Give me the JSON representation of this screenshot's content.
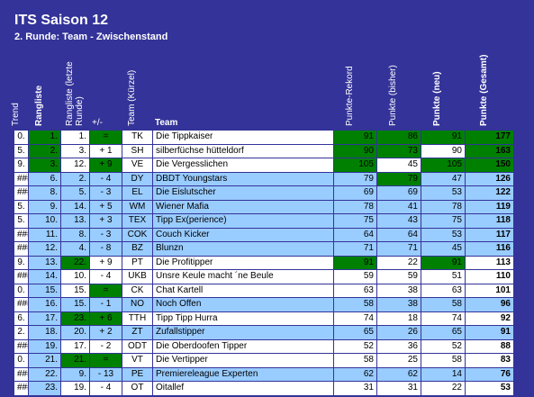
{
  "header": {
    "title": "ITS Saison 12",
    "subtitle": "2. Runde: Team - Zwischenstand"
  },
  "table": {
    "columns": [
      "Trend",
      "Rangliste",
      "Rangliste (letzte Runde)",
      "+/-",
      "Team (Kürzel)",
      "Team",
      "Punkte-Rekord",
      "Punkte (bisher)",
      "Punkte (neu)",
      "Punkte (Gesamt)"
    ],
    "rows": [
      [
        "0.",
        "1.",
        "1.",
        "=",
        "TK",
        "Die Tippkaiser",
        91,
        86,
        91,
        177
      ],
      [
        "5.",
        "2.",
        "3.",
        "+ 1",
        "SH",
        "silberfüchse hütteldorf",
        90,
        73,
        90,
        163
      ],
      [
        "9.",
        "3.",
        "12.",
        "+ 9",
        "VE",
        "Die Vergesslichen",
        105,
        45,
        105,
        150
      ],
      [
        "###",
        "6.",
        "2.",
        "- 4",
        "DY",
        "DBDT Youngstars",
        79,
        79,
        47,
        126
      ],
      [
        "###",
        "8.",
        "5.",
        "- 3",
        "EL",
        "Die Eislutscher",
        69,
        69,
        53,
        122
      ],
      [
        "5.",
        "9.",
        "14.",
        "+ 5",
        "WM",
        "Wiener Mafia",
        78,
        41,
        78,
        119
      ],
      [
        "5.",
        "10.",
        "13.",
        "+ 3",
        "TEX",
        "Tipp Ex(perience)",
        75,
        43,
        75,
        118
      ],
      [
        "###",
        "11.",
        "8.",
        "- 3",
        "COK",
        "Couch Kicker",
        64,
        64,
        53,
        117
      ],
      [
        "###",
        "12.",
        "4.",
        "- 8",
        "BZ",
        "Blunzn",
        71,
        71,
        45,
        116
      ],
      [
        "9.",
        "13.",
        "22.",
        "+ 9",
        "PT",
        "Die Profitipper",
        91,
        22,
        91,
        113
      ],
      [
        "###",
        "14.",
        "10.",
        "- 4",
        "UKB",
        "Unsre Keule macht ´ne Beule",
        59,
        59,
        51,
        110
      ],
      [
        "0.",
        "15.",
        "15.",
        "=",
        "CK",
        "Chat Kartell",
        63,
        38,
        63,
        101
      ],
      [
        "###",
        "16.",
        "15.",
        "- 1",
        "NO",
        "Noch Offen",
        58,
        38,
        58,
        96
      ],
      [
        "6.",
        "17.",
        "23.",
        "+ 6",
        "TTH",
        "Tipp Tipp Hurra",
        74,
        18,
        74,
        92
      ],
      [
        "2.",
        "18.",
        "20.",
        "+ 2",
        "ZT",
        "Zufallstipper",
        65,
        26,
        65,
        91
      ],
      [
        "###",
        "19.",
        "17.",
        "- 2",
        "ODT",
        "Die Oberdoofen Tipper",
        52,
        36,
        52,
        88
      ],
      [
        "0.",
        "21.",
        "21.",
        "=",
        "VT",
        "Die Vertipper",
        58,
        25,
        58,
        83
      ],
      [
        "###",
        "22.",
        "9.",
        "- 13",
        "PE",
        "Premiereleague Experten",
        62,
        62,
        14,
        76
      ],
      [
        "###",
        "23.",
        "19.",
        "- 4",
        "OT",
        "Oitallef",
        31,
        31,
        22,
        53
      ]
    ]
  }
}
